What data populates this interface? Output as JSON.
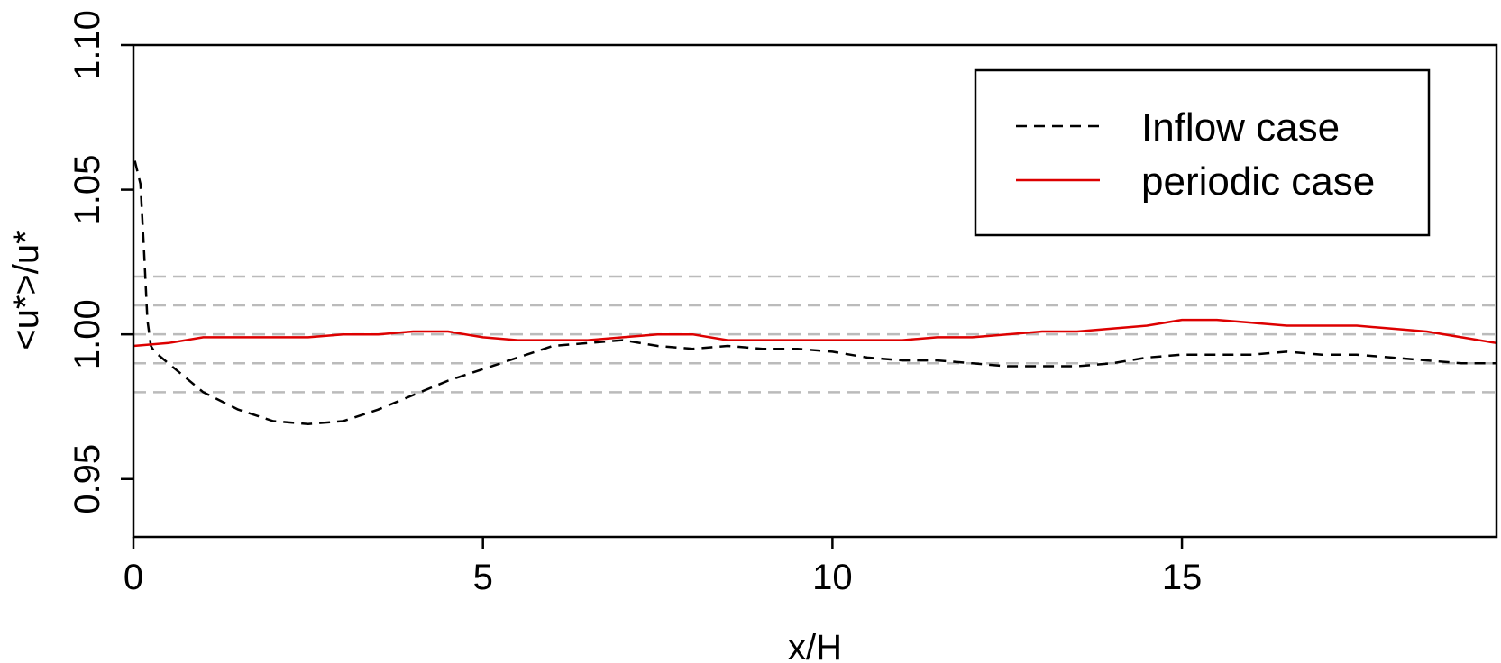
{
  "chart_data": {
    "type": "line",
    "xlabel": "x/H",
    "ylabel": "<u*>/u*",
    "xlim": [
      0,
      19.5
    ],
    "ylim": [
      0.93,
      1.1
    ],
    "x_ticks": [
      "0",
      "5",
      "10",
      "15"
    ],
    "y_ticks": [
      "0.95",
      "1.00",
      "1.05",
      "1.10"
    ],
    "reference_lines": [
      0.98,
      0.99,
      1.0,
      1.01,
      1.02
    ],
    "grid": false,
    "legend_position": "top-right",
    "colors": {
      "inflow": "#000000",
      "periodic": "#dd0000",
      "reference": "#bbbbbb"
    },
    "series": [
      {
        "name": "Inflow case",
        "style": "dashed",
        "x": [
          0.02,
          0.1,
          0.15,
          0.2,
          0.25,
          0.3,
          0.5,
          1.0,
          1.5,
          2.0,
          2.5,
          3.0,
          3.5,
          4.0,
          4.5,
          5.0,
          5.5,
          6.0,
          6.5,
          7.0,
          7.5,
          8.0,
          8.5,
          9.0,
          9.5,
          10.0,
          10.5,
          11.0,
          11.5,
          12.0,
          12.5,
          13.0,
          13.5,
          14.0,
          14.5,
          15.0,
          15.5,
          16.0,
          16.5,
          17.0,
          17.5,
          18.0,
          18.5,
          19.0,
          19.5
        ],
        "y": [
          1.06,
          1.052,
          1.03,
          1.005,
          0.996,
          0.994,
          0.99,
          0.98,
          0.974,
          0.97,
          0.969,
          0.97,
          0.974,
          0.979,
          0.984,
          0.988,
          0.992,
          0.996,
          0.997,
          0.998,
          0.996,
          0.995,
          0.996,
          0.995,
          0.995,
          0.994,
          0.992,
          0.991,
          0.991,
          0.99,
          0.989,
          0.989,
          0.989,
          0.99,
          0.992,
          0.993,
          0.993,
          0.993,
          0.994,
          0.993,
          0.993,
          0.992,
          0.991,
          0.99,
          0.99
        ]
      },
      {
        "name": "periodic case",
        "style": "solid",
        "x": [
          0,
          0.5,
          1.0,
          1.5,
          2.0,
          2.5,
          3.0,
          3.5,
          4.0,
          4.5,
          5.0,
          5.5,
          6.0,
          6.5,
          7.0,
          7.5,
          8.0,
          8.5,
          9.0,
          9.5,
          10.0,
          10.5,
          11.0,
          11.5,
          12.0,
          12.5,
          13.0,
          13.5,
          14.0,
          14.5,
          15.0,
          15.5,
          16.0,
          16.5,
          17.0,
          17.5,
          18.0,
          18.5,
          19.0,
          19.5
        ],
        "y": [
          0.996,
          0.997,
          0.999,
          0.999,
          0.999,
          0.999,
          1.0,
          1.0,
          1.001,
          1.001,
          0.999,
          0.998,
          0.998,
          0.998,
          0.999,
          1.0,
          1.0,
          0.998,
          0.998,
          0.998,
          0.998,
          0.998,
          0.998,
          0.999,
          0.999,
          1.0,
          1.001,
          1.001,
          1.002,
          1.003,
          1.005,
          1.005,
          1.004,
          1.003,
          1.003,
          1.003,
          1.002,
          1.001,
          0.999,
          0.997
        ]
      }
    ]
  }
}
